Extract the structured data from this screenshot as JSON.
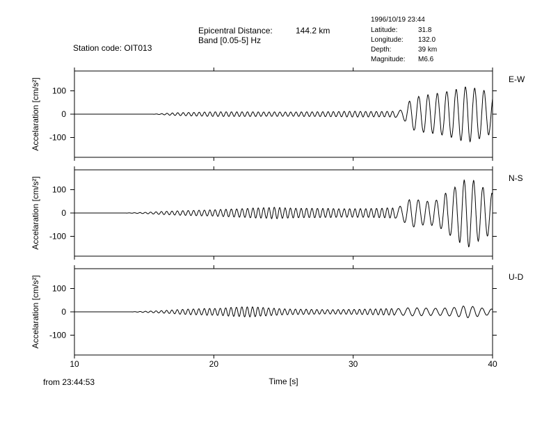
{
  "header": {
    "station_label": "Station code: OIT013",
    "distance_label": "Epicentral Distance:",
    "distance_value": "144.2 km",
    "band_label": "Band [0.05-5] Hz",
    "event": {
      "datetime": "1996/10/19 23:44",
      "latitude_label": "Latitude:",
      "latitude_value": "31.8",
      "longitude_label": "Longitude:",
      "longitude_value": "132.0",
      "depth_label": "Depth:",
      "depth_value": "39 km",
      "magnitude_label": "Magnitude:",
      "magnitude_value": "M6.6"
    }
  },
  "footer": {
    "start_time": "from 23:44:53"
  },
  "colors": {
    "trace": "#000000",
    "axis": "#000000",
    "background": "#ffffff"
  },
  "chart_data": [
    {
      "type": "line",
      "component": "E-W",
      "ylabel": "Accelaration [cm/s²]",
      "xlim": [
        10,
        40
      ],
      "ylim": [
        -185,
        185
      ],
      "yticks": [
        -100,
        0,
        100
      ],
      "ytick_labels": [
        "-100",
        "0",
        "100"
      ],
      "envelope": {
        "x": [
          10,
          15.5,
          16,
          17,
          20,
          25,
          30,
          32,
          33.2,
          33.6,
          34,
          35,
          36,
          37,
          38,
          39,
          40
        ],
        "amp": [
          0,
          0,
          2,
          6,
          10,
          9,
          12,
          11,
          14,
          35,
          75,
          80,
          90,
          105,
          120,
          105,
          70
        ]
      }
    },
    {
      "type": "line",
      "component": "N-S",
      "ylabel": "Accelaration [cm/s²]",
      "xlim": [
        10,
        40
      ],
      "ylim": [
        -185,
        185
      ],
      "yticks": [
        -100,
        0,
        100
      ],
      "ytick_labels": [
        "-100",
        "0",
        "100"
      ],
      "envelope": {
        "x": [
          10,
          13.5,
          14,
          15,
          17,
          20,
          24,
          26,
          30,
          33,
          33.5,
          34,
          35,
          36,
          37,
          38,
          39,
          40
        ],
        "amp": [
          0,
          0,
          1,
          3,
          9,
          14,
          24,
          20,
          18,
          22,
          40,
          65,
          45,
          60,
          110,
          155,
          110,
          75
        ]
      }
    },
    {
      "type": "line",
      "component": "U-D",
      "ylabel": "Accelaration [cm/s²]",
      "xlim": [
        10,
        40
      ],
      "ylim": [
        -185,
        185
      ],
      "yticks": [
        -100,
        0,
        100
      ],
      "ytick_labels": [
        "-100",
        "0",
        "100"
      ],
      "envelope": {
        "x": [
          10,
          14,
          14.2,
          16,
          18,
          20,
          22,
          25,
          28,
          30,
          33,
          34,
          36,
          37,
          38,
          39,
          40
        ],
        "amp": [
          0,
          0,
          1,
          5,
          12,
          15,
          22,
          12,
          9,
          11,
          14,
          18,
          15,
          18,
          28,
          16,
          10
        ]
      }
    }
  ],
  "x_axis": {
    "label": "Time [s]",
    "ticks": [
      10,
      20,
      30,
      40
    ],
    "tick_labels": [
      "10",
      "20",
      "30",
      "40"
    ]
  }
}
